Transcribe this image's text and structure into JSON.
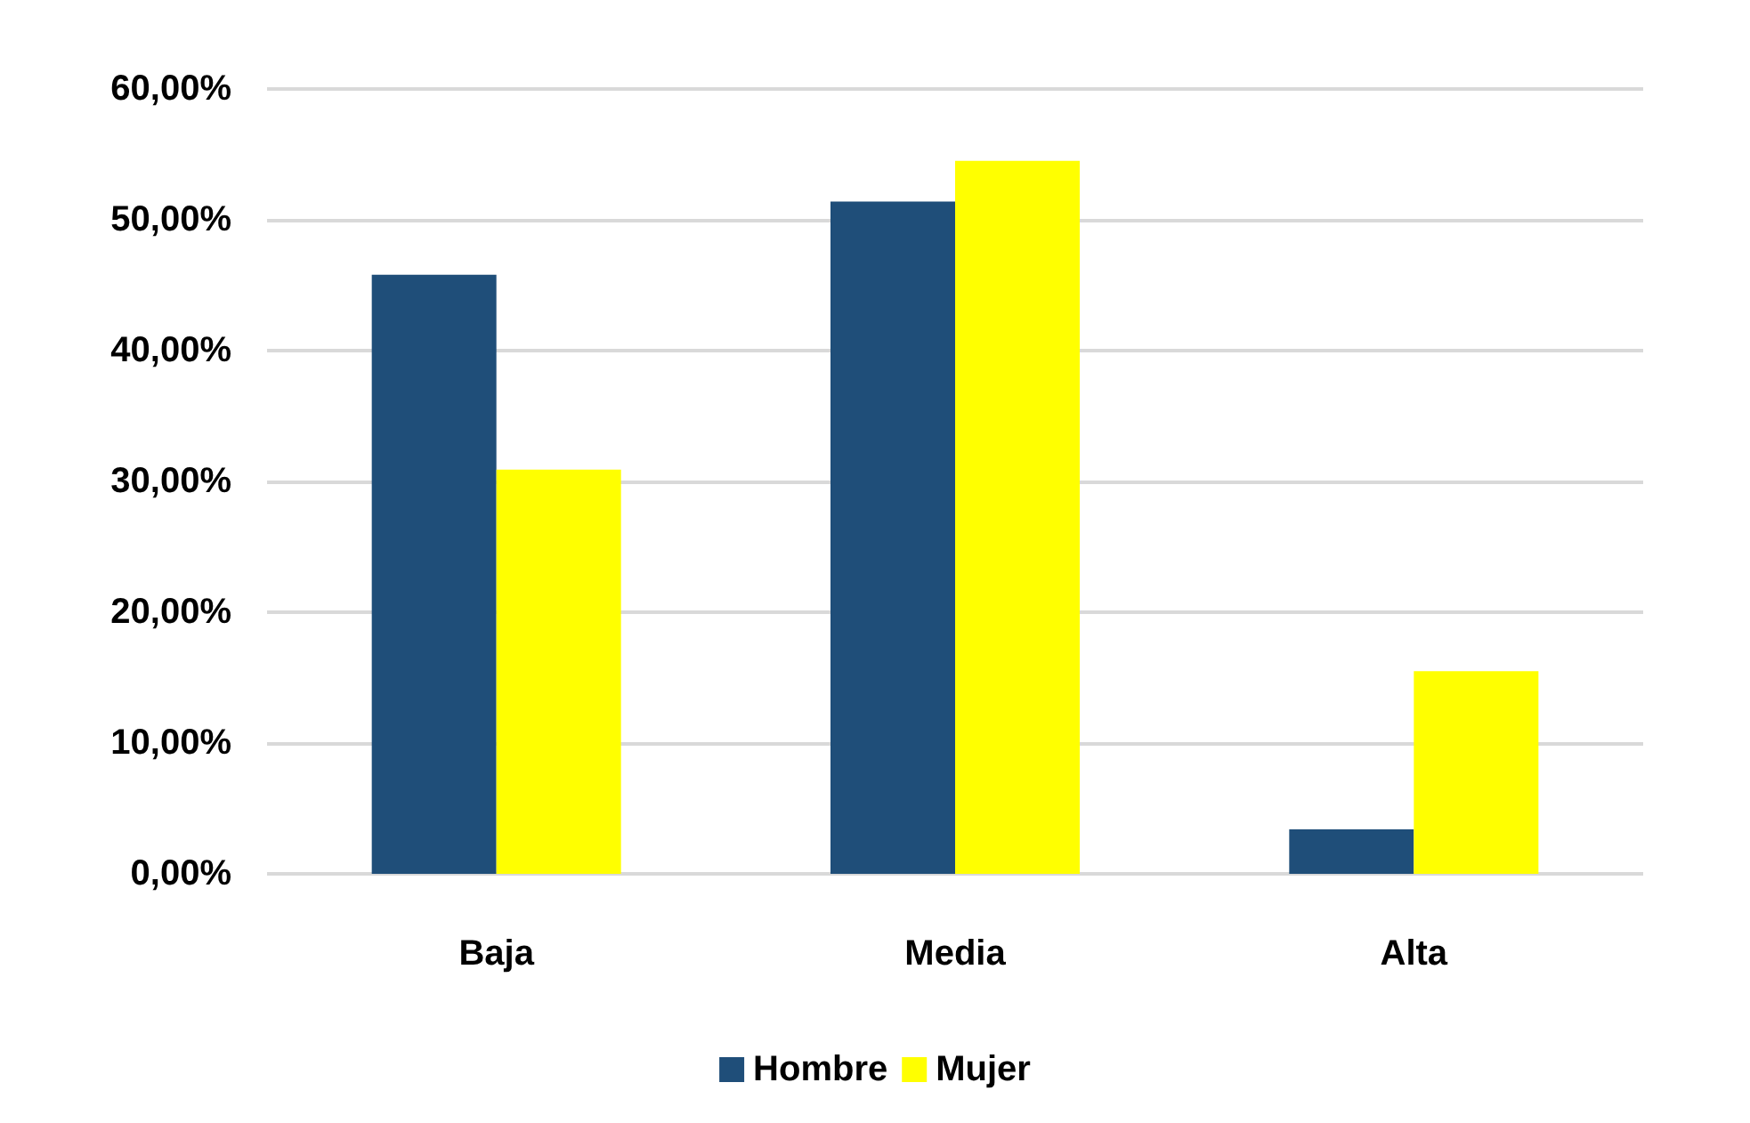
{
  "chart_data": {
    "type": "bar",
    "categories": [
      "Baja",
      "Media",
      "Alta"
    ],
    "series": [
      {
        "name": "Hombre",
        "color": "#1f4e79",
        "values": [
          45.8,
          51.4,
          3.4
        ]
      },
      {
        "name": "Mujer",
        "color": "#ffff00",
        "values": [
          30.9,
          54.5,
          15.5
        ]
      }
    ],
    "ylim": [
      0,
      60
    ],
    "yticks": [
      {
        "value": 0,
        "label": "0,00%"
      },
      {
        "value": 10,
        "label": "10,00%"
      },
      {
        "value": 20,
        "label": "20,00%"
      },
      {
        "value": 30,
        "label": "30,00%"
      },
      {
        "value": 40,
        "label": "40,00%"
      },
      {
        "value": 50,
        "label": "50,00%"
      },
      {
        "value": 60,
        "label": "60,00%"
      }
    ],
    "grid": "y",
    "legend": "bottom"
  }
}
